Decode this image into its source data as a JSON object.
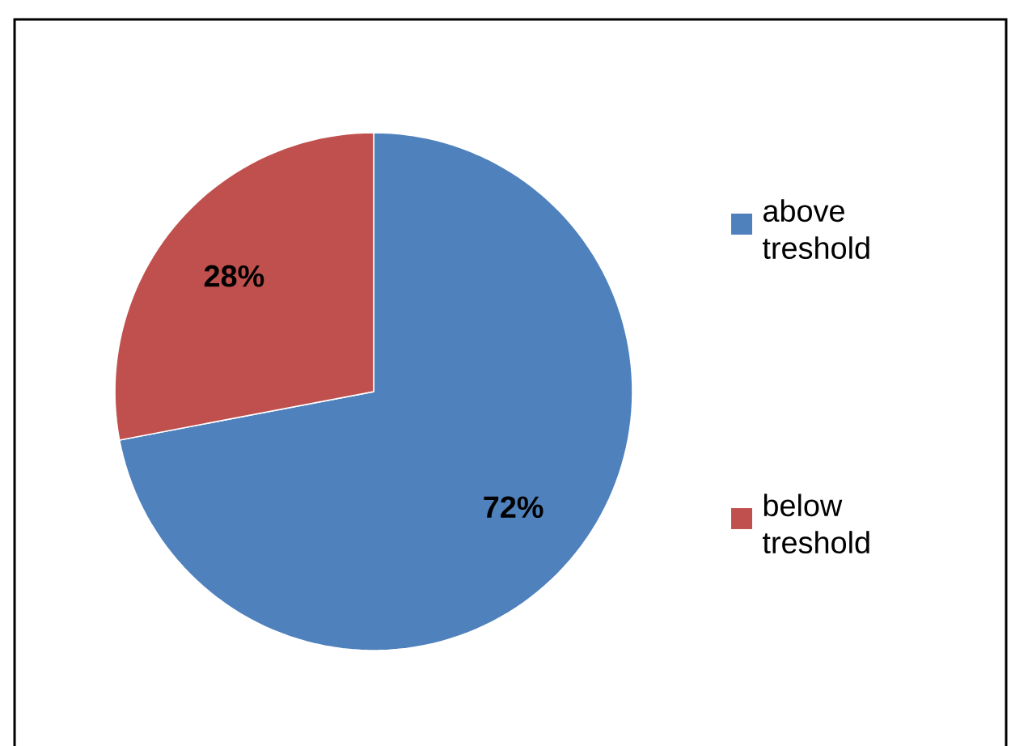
{
  "chart_data": {
    "type": "pie",
    "categories": [
      "above treshold",
      "below treshold"
    ],
    "values": [
      72,
      28
    ],
    "colors": [
      "#4f81bd",
      "#c0504d"
    ],
    "value_labels": [
      "72%",
      "28%"
    ],
    "legend": "right"
  }
}
